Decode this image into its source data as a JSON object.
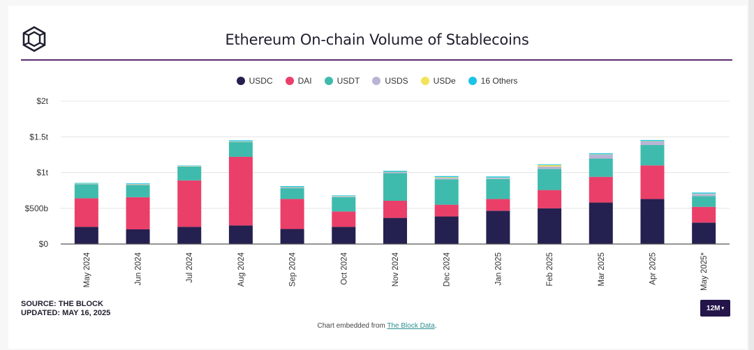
{
  "header": {
    "title": "Ethereum On-chain Volume of Stablecoins",
    "logo_icon": "cube-logo-icon"
  },
  "legend": [
    {
      "label": "USDC",
      "color": "#24204f"
    },
    {
      "label": "DAI",
      "color": "#ea3f69"
    },
    {
      "label": "USDT",
      "color": "#3ebbad"
    },
    {
      "label": "USDS",
      "color": "#b9b4d6"
    },
    {
      "label": "USDe",
      "color": "#f2e35a"
    },
    {
      "label": "16 Others",
      "color": "#1cc3e8"
    }
  ],
  "footer": {
    "source_line": "SOURCE: THE BLOCK",
    "updated_line": "UPDATED: MAY 16, 2025",
    "range_button": "12M",
    "range_icon": "caret-down-icon",
    "embed_prefix": "Chart embedded from ",
    "embed_link": "The Block Data",
    "embed_suffix": "."
  },
  "chart_data": {
    "type": "bar",
    "stacked": true,
    "title": "Ethereum On-chain Volume of Stablecoins",
    "xlabel": "",
    "ylabel": "",
    "ylim": [
      0,
      2000000000000
    ],
    "y_ticks": [
      {
        "value": 0,
        "label": "$0"
      },
      {
        "value": 500000000000,
        "label": "$500b"
      },
      {
        "value": 1000000000000,
        "label": "$1t"
      },
      {
        "value": 1500000000000,
        "label": "$1.5t"
      },
      {
        "value": 2000000000000,
        "label": "$2t"
      }
    ],
    "grid": true,
    "legend_position": "top-center",
    "categories": [
      "May 2024",
      "Jun 2024",
      "Jul 2024",
      "Aug 2024",
      "Sep 2024",
      "Oct 2024",
      "Nov 2024",
      "Dec 2024",
      "Jan 2025",
      "Feb 2025",
      "Mar 2025",
      "Apr 2025",
      "May 2025*"
    ],
    "series": [
      {
        "name": "USDC",
        "color": "#24204f",
        "values": [
          240,
          205,
          240,
          260,
          210,
          240,
          365,
          385,
          465,
          500,
          580,
          630,
          300
        ]
      },
      {
        "name": "DAI",
        "color": "#ea3f69",
        "values": [
          400,
          450,
          650,
          960,
          420,
          215,
          240,
          165,
          165,
          255,
          360,
          470,
          220
        ]
      },
      {
        "name": "USDT",
        "color": "#3ebbad",
        "values": [
          195,
          170,
          195,
          205,
          150,
          200,
          385,
          355,
          280,
          295,
          255,
          285,
          150
        ]
      },
      {
        "name": "USDS",
        "color": "#b9b4d6",
        "values": [
          5,
          10,
          5,
          5,
          10,
          10,
          15,
          20,
          15,
          35,
          55,
          50,
          30
        ]
      },
      {
        "name": "USDe",
        "color": "#f2e35a",
        "values": [
          5,
          5,
          3,
          5,
          5,
          5,
          5,
          10,
          5,
          20,
          5,
          5,
          5
        ]
      },
      {
        "name": "16 Others",
        "color": "#1cc3e8",
        "values": [
          10,
          10,
          5,
          15,
          15,
          10,
          15,
          15,
          15,
          10,
          15,
          15,
          15
        ]
      }
    ],
    "value_unit": "billions USD"
  }
}
